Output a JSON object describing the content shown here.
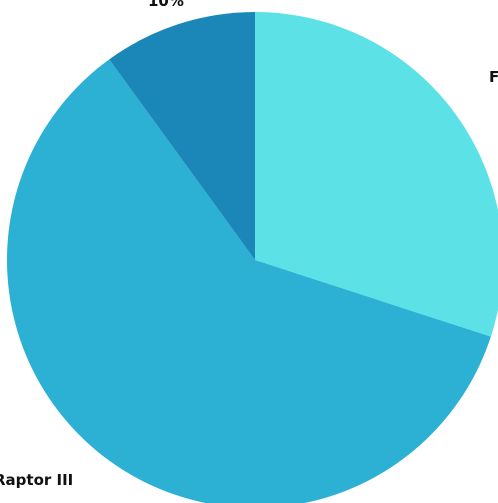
{
  "chart_data": {
    "type": "pie",
    "title": "",
    "start_angle_deg": 0,
    "direction": "clockwise",
    "slices": [
      {
        "label": "F",
        "value": 30,
        "color": "#5ce1e6"
      },
      {
        "label": "Raptor III",
        "value": 60,
        "color": "#2cb1d4"
      },
      {
        "label": "10%",
        "value": 10,
        "color": "#1a87b8"
      }
    ]
  }
}
